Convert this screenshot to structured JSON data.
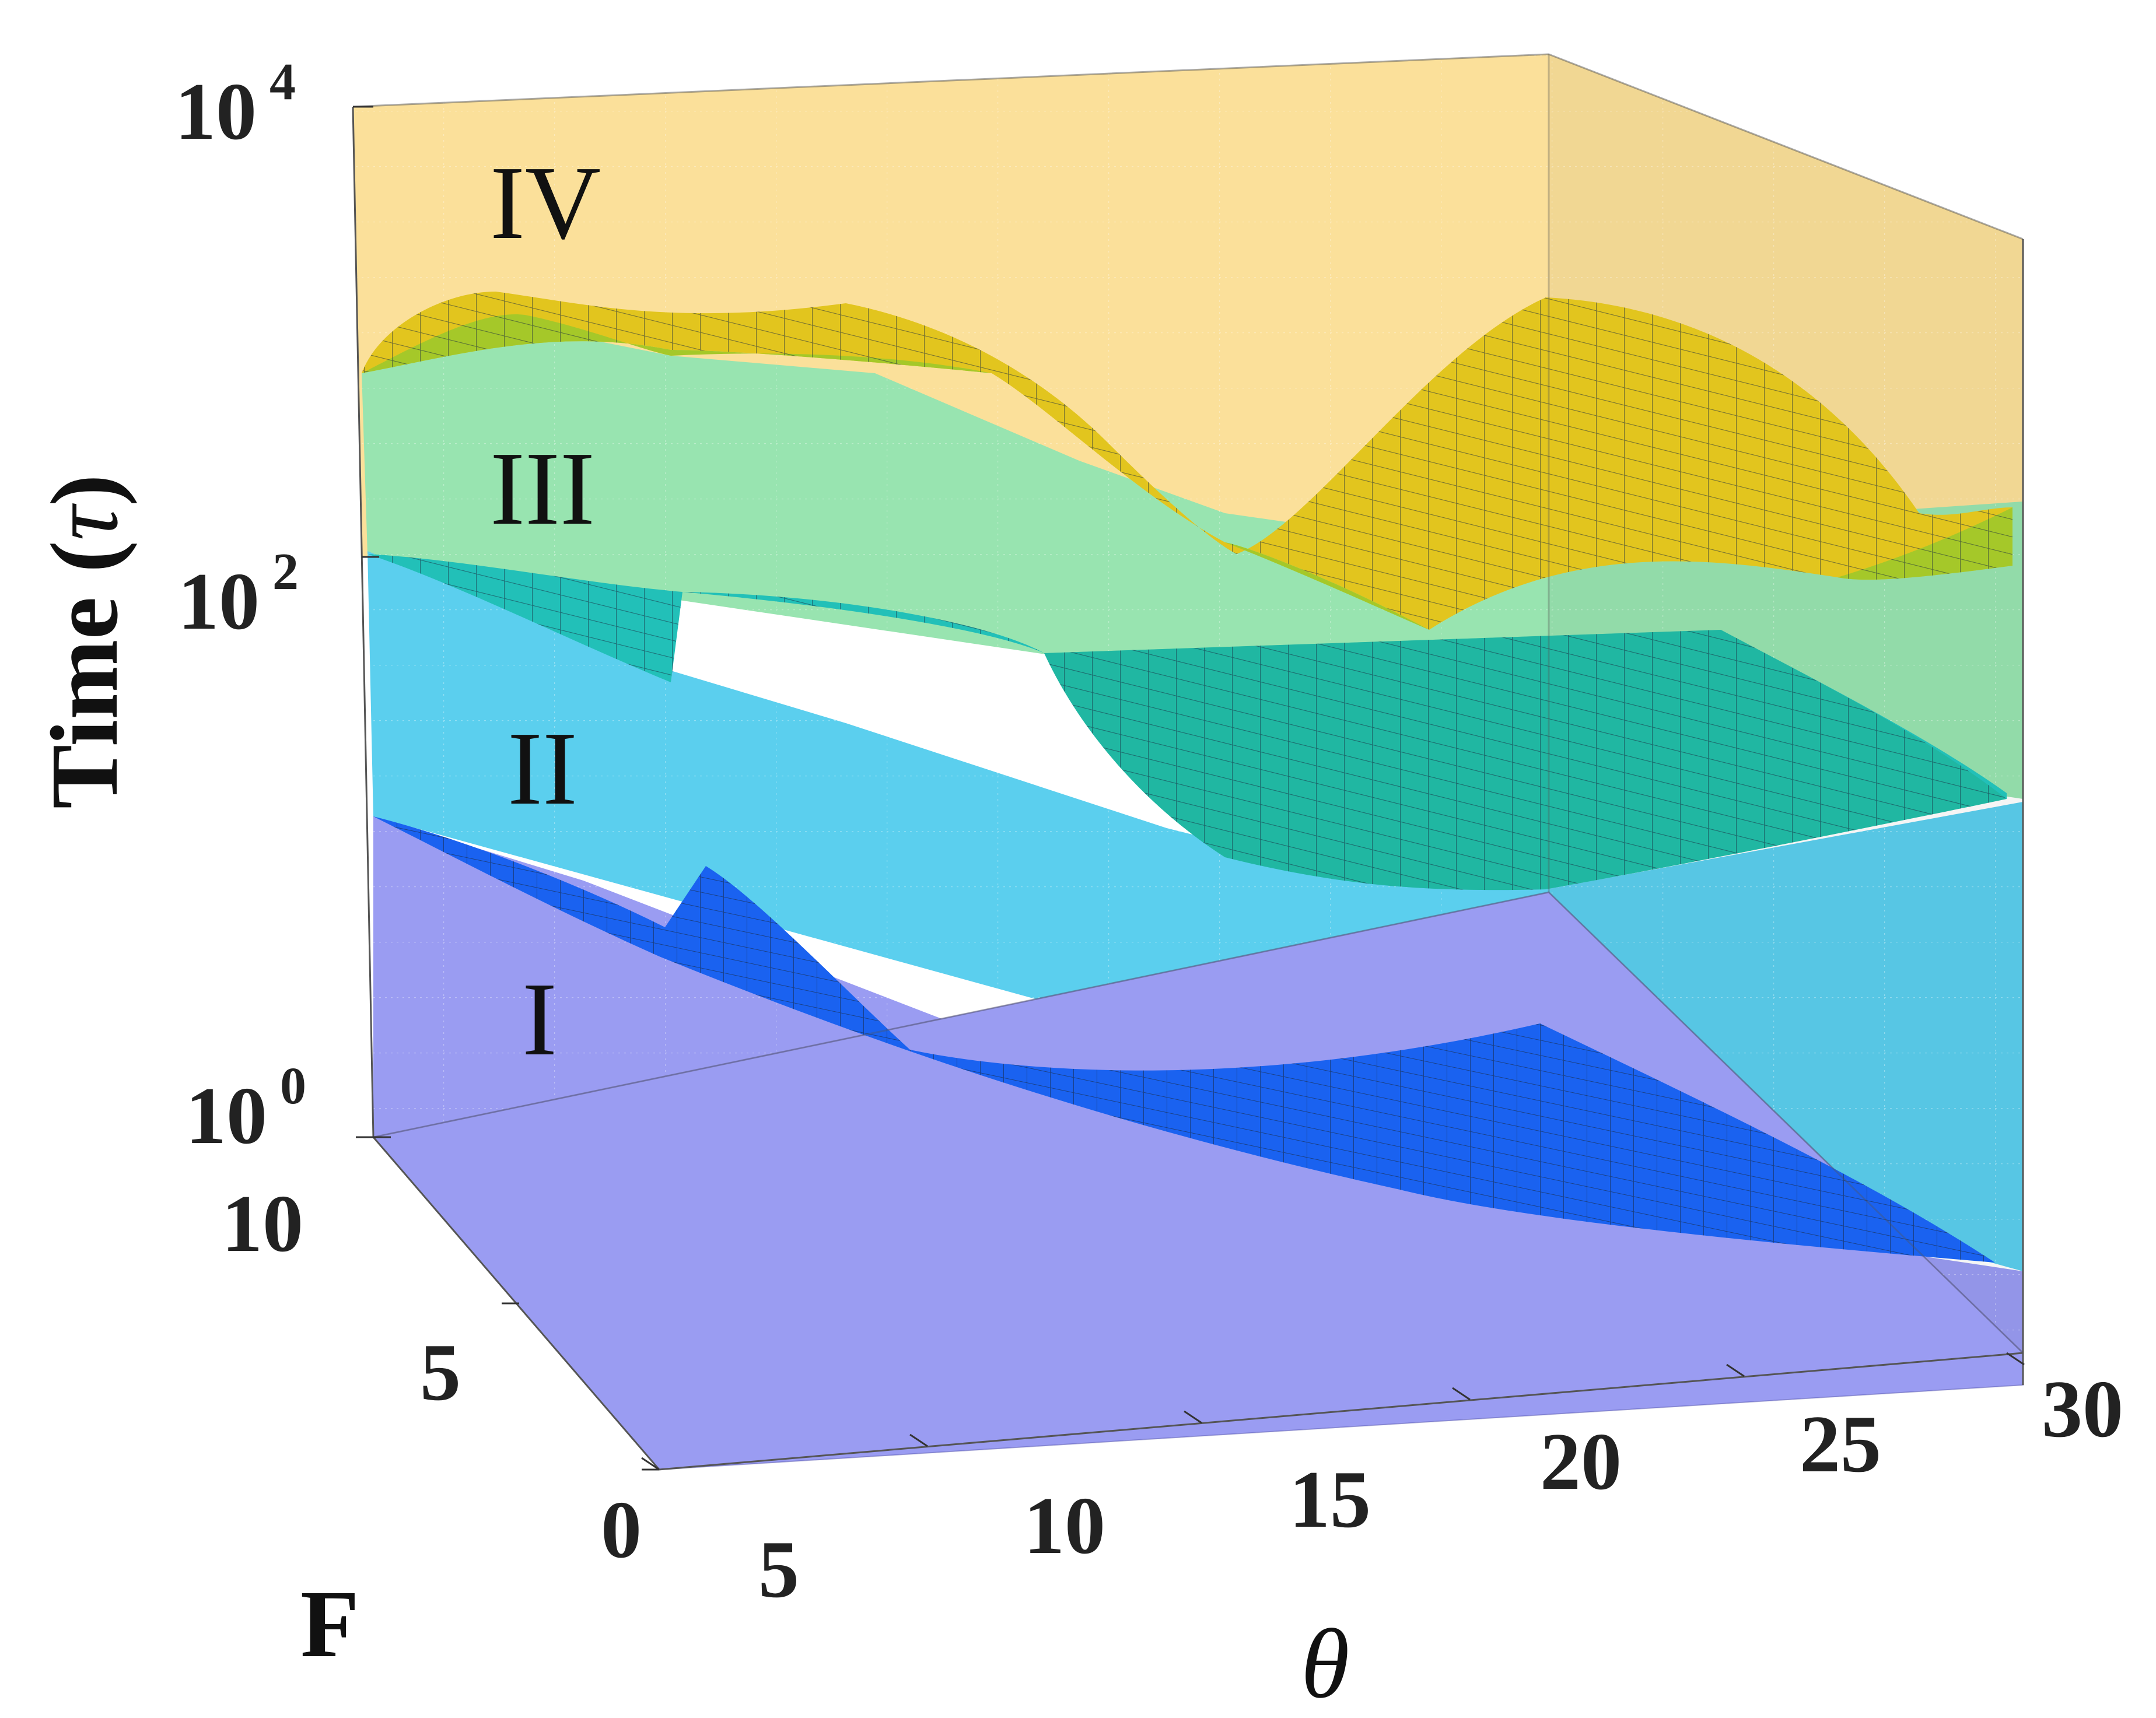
{
  "chart_data": {
    "type": "surface3d",
    "title": "",
    "zlabel": "Time (τ)",
    "zlabel_main": "Time (",
    "zlabel_symbol": "τ",
    "zlabel_close": ")",
    "xlabel": "θ",
    "ylabel": "F",
    "x_ticks": [
      "5",
      "10",
      "15",
      "20",
      "25",
      "30"
    ],
    "y_ticks": [
      "0",
      "5",
      "10"
    ],
    "z_ticks": [
      {
        "base": "10",
        "exp": "0"
      },
      {
        "base": "10",
        "exp": "2"
      },
      {
        "base": "10",
        "exp": "4"
      }
    ],
    "xlim": [
      5,
      30
    ],
    "ylim": [
      0,
      10
    ],
    "zlim": [
      1,
      10000
    ],
    "zscale": "log",
    "grid": true,
    "regions": [
      {
        "label": "I",
        "color": "#9a9cf2"
      },
      {
        "label": "II",
        "color": "#5bcfee"
      },
      {
        "label": "III",
        "color": "#98e4b0"
      },
      {
        "label": "IV",
        "color": "#fbe09a"
      }
    ],
    "surface_colors": {
      "boundary_1_2": "#1a62f0",
      "boundary_2_3": "#22c0b8",
      "boundary_3_4": "#e2c51e",
      "boundary_3_4_back": "#a5c829"
    }
  }
}
